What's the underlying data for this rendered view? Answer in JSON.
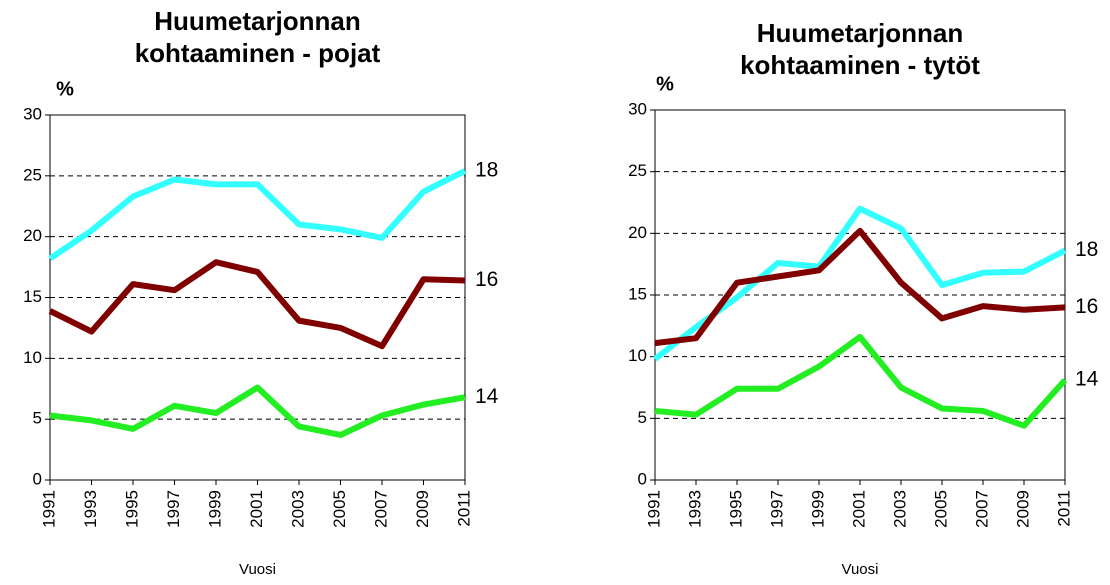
{
  "chart_data": [
    {
      "type": "line",
      "title": "Huumetarjonnan kohtaaminen - pojat",
      "y_unit": "%",
      "xlabel": "Vuosi",
      "x": [
        1991,
        1993,
        1995,
        1997,
        1999,
        2001,
        2003,
        2005,
        2007,
        2009,
        2011
      ],
      "series": [
        {
          "name": "18",
          "color": "#33ffff",
          "values": [
            18.2,
            20.5,
            23.3,
            24.7,
            24.3,
            24.3,
            21.0,
            20.6,
            19.9,
            23.7,
            25.4
          ]
        },
        {
          "name": "16",
          "color": "#800000",
          "values": [
            13.9,
            12.2,
            16.1,
            15.6,
            17.9,
            17.1,
            13.1,
            12.5,
            11.0,
            16.5,
            16.4
          ]
        },
        {
          "name": "14",
          "color": "#22ee22",
          "values": [
            5.3,
            4.9,
            4.2,
            6.1,
            5.5,
            7.6,
            4.4,
            3.7,
            5.3,
            6.2,
            6.8
          ]
        }
      ],
      "xlim": [
        1991,
        2011
      ],
      "xticks": [
        1991,
        1993,
        1995,
        1997,
        1999,
        2001,
        2003,
        2005,
        2007,
        2009,
        2011
      ],
      "ylim": [
        0,
        30
      ],
      "yticks": [
        0,
        5,
        10,
        15,
        20,
        25,
        30
      ],
      "grid": true
    },
    {
      "type": "line",
      "title": "Huumetarjonnan kohtaaminen - tytöt",
      "y_unit": "%",
      "xlabel": "Vuosi",
      "x": [
        1991,
        1993,
        1995,
        1997,
        1999,
        2001,
        2003,
        2005,
        2007,
        2009,
        2011
      ],
      "series": [
        {
          "name": "18",
          "color": "#33ffff",
          "values": [
            9.8,
            12.4,
            14.8,
            17.6,
            17.3,
            22.0,
            20.4,
            15.8,
            16.8,
            16.9,
            18.6
          ]
        },
        {
          "name": "16",
          "color": "#800000",
          "values": [
            11.1,
            11.5,
            16.0,
            16.5,
            17.0,
            20.2,
            16.0,
            13.1,
            14.1,
            13.8,
            14.0
          ]
        },
        {
          "name": "14",
          "color": "#22ee22",
          "values": [
            5.6,
            5.3,
            7.4,
            7.4,
            9.2,
            11.6,
            7.5,
            5.8,
            5.6,
            4.4,
            8.1
          ]
        }
      ],
      "xlim": [
        1991,
        2011
      ],
      "xticks": [
        1991,
        1993,
        1995,
        1997,
        1999,
        2001,
        2003,
        2005,
        2007,
        2009,
        2011
      ],
      "ylim": [
        0,
        30
      ],
      "yticks": [
        0,
        5,
        10,
        15,
        20,
        25,
        30
      ],
      "grid": true
    }
  ]
}
